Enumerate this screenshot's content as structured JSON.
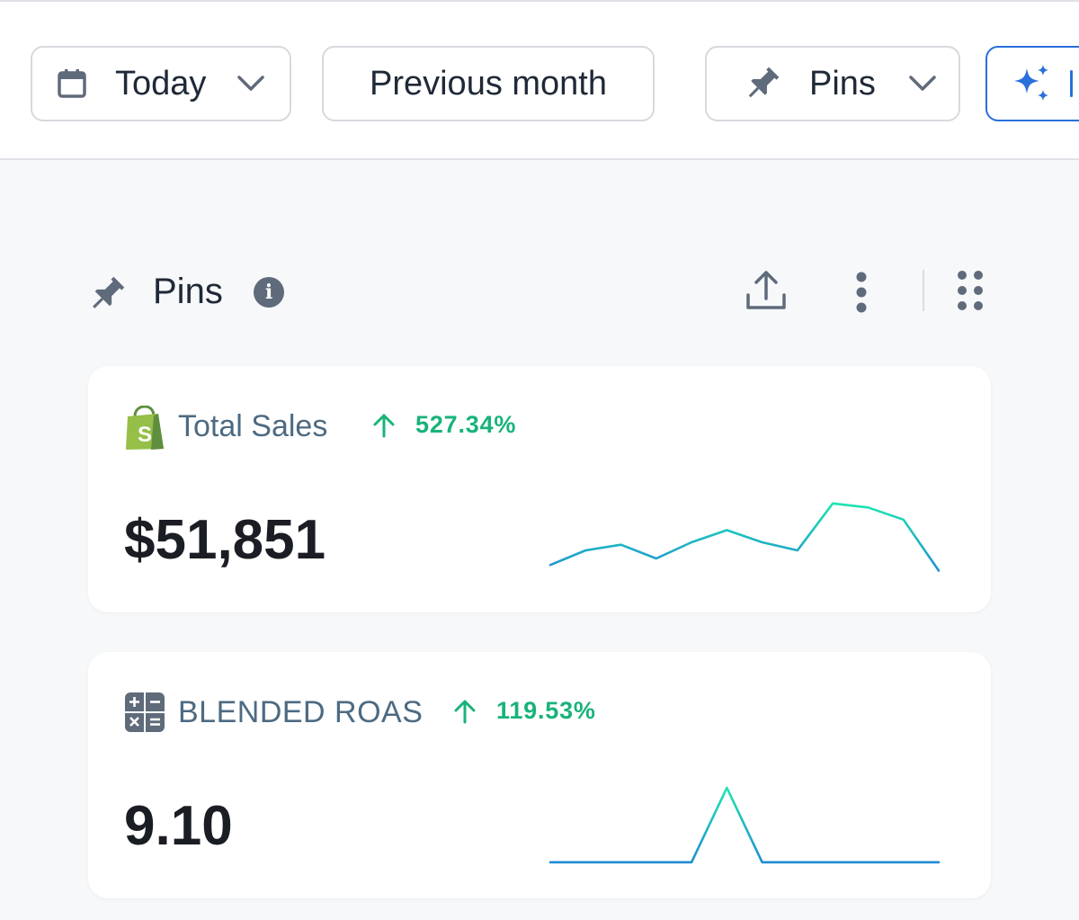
{
  "toolbar": {
    "date_label": "Today",
    "compare_label": "Previous month",
    "pins_label": "Pins"
  },
  "section": {
    "title": "Pins",
    "info_glyph": "i"
  },
  "colors": {
    "accent_blue": "#2a6fdb",
    "positive_green": "#19b37a",
    "sparkline_start": "#1f84d6",
    "sparkline_end": "#1fe6b0"
  },
  "cards": [
    {
      "name": "Total Sales",
      "icon": "shopify-bag-icon",
      "change": "527.34%",
      "trend": "up",
      "value": "$51,851",
      "sparkline": [
        0.22,
        0.4,
        0.47,
        0.3,
        0.5,
        0.65,
        0.5,
        0.4,
        0.98,
        0.93,
        0.78,
        0.15
      ]
    },
    {
      "name": "BLENDED ROAS",
      "icon": "calculator-icon",
      "change": "119.53%",
      "trend": "up",
      "value": "9.10",
      "sparkline": [
        0.08,
        0.08,
        0.08,
        0.08,
        0.08,
        1.0,
        0.08,
        0.08,
        0.08,
        0.08,
        0.08,
        0.08
      ]
    }
  ]
}
